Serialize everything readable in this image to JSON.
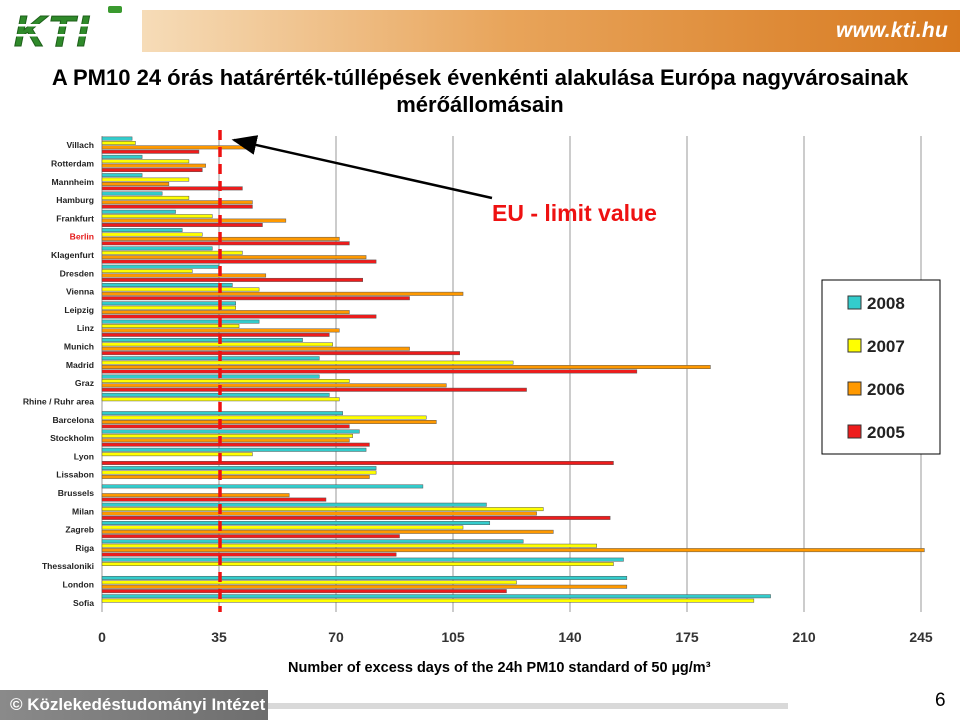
{
  "header": {
    "logo_text": "KTI",
    "url": "www.kti.hu"
  },
  "slide": {
    "title_line1": "A PM10 24 órás határérték-túllépések évenkénti alakulása Európa nagyvárosainak",
    "title_line2": "mérőállomásain",
    "page_number": "6"
  },
  "footer": {
    "text": "© Közlekedéstudományi Intézet Kht."
  },
  "chart_data": {
    "type": "bar",
    "orientation": "horizontal",
    "xlabel": "Number of excess days of the 24h PM10 standard of 50 µg/m³",
    "xlim": [
      0,
      245
    ],
    "xticks": [
      0,
      35,
      70,
      105,
      140,
      175,
      210,
      245
    ],
    "grid": true,
    "legend_position": "right",
    "annotation": {
      "text": "EU - limit value",
      "value": 35
    },
    "highlighted_category": "Berlin",
    "categories": [
      "Villach",
      "Rotterdam",
      "Mannheim",
      "Hamburg",
      "Frankfurt",
      "Berlin",
      "Klagenfurt",
      "Dresden",
      "Vienna",
      "Leipzig",
      "Linz",
      "Munich",
      "Madrid",
      "Graz",
      "Rhine / Ruhr area",
      "Barcelona",
      "Stockholm",
      "Lyon",
      "Lissabon",
      "Brussels",
      "Milan",
      "Zagreb",
      "Riga",
      "Thessaloniki",
      "London",
      "Sofia"
    ],
    "series": [
      {
        "name": "2008",
        "color": "#33cccc",
        "values": [
          9,
          12,
          12,
          18,
          22,
          24,
          33,
          35,
          39,
          40,
          47,
          60,
          65,
          65,
          68,
          72,
          77,
          79,
          82,
          96,
          115,
          116,
          126,
          156,
          157,
          200
        ]
      },
      {
        "name": "2007",
        "color": "#ffff00",
        "values": [
          10,
          26,
          26,
          26,
          33,
          30,
          42,
          27,
          47,
          40,
          41,
          69,
          123,
          74,
          71,
          97,
          75,
          45,
          82,
          0,
          132,
          108,
          148,
          153,
          124,
          195
        ]
      },
      {
        "name": "2006",
        "color": "#ff9900",
        "values": [
          45,
          31,
          20,
          45,
          55,
          71,
          79,
          49,
          108,
          74,
          71,
          92,
          182,
          103,
          0,
          100,
          74,
          0,
          80,
          56,
          130,
          135,
          246,
          0,
          157,
          0
        ]
      },
      {
        "name": "2005",
        "color": "#ee1c1c",
        "values": [
          29,
          30,
          42,
          45,
          48,
          74,
          82,
          78,
          92,
          82,
          68,
          107,
          160,
          127,
          0,
          74,
          80,
          153,
          0,
          67,
          152,
          89,
          88,
          0,
          121,
          0
        ]
      }
    ]
  }
}
